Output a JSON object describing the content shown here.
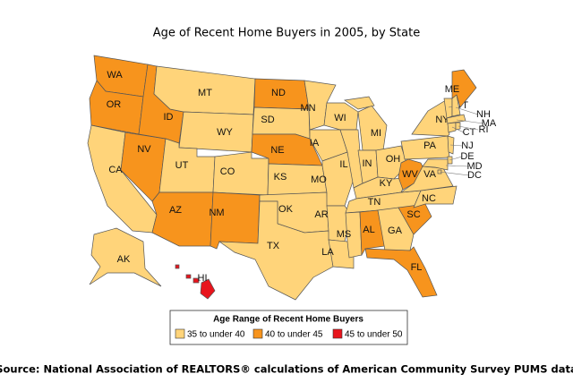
{
  "title": "Age of Recent Home Buyers in 2005, by State",
  "states": [
    {
      "abbr": "WA",
      "color": "#F7941D"
    },
    {
      "abbr": "OR",
      "color": "#F7941D"
    },
    {
      "abbr": "CA",
      "color": "#FFD47A"
    },
    {
      "abbr": "NV",
      "color": "#F7941D"
    },
    {
      "abbr": "ID",
      "color": "#F7941D"
    },
    {
      "abbr": "MT",
      "color": "#FFD47A"
    },
    {
      "abbr": "WY",
      "color": "#FFD47A"
    },
    {
      "abbr": "UT",
      "color": "#FFD47A"
    },
    {
      "abbr": "CO",
      "color": "#FFD47A"
    },
    {
      "abbr": "AZ",
      "color": "#F7941D"
    },
    {
      "abbr": "NM",
      "color": "#F7941D"
    },
    {
      "abbr": "ND",
      "color": "#F7941D"
    },
    {
      "abbr": "SD",
      "color": "#FFD47A"
    },
    {
      "abbr": "NE",
      "color": "#F7941D"
    },
    {
      "abbr": "KS",
      "color": "#FFD47A"
    },
    {
      "abbr": "OK",
      "color": "#FFD47A"
    },
    {
      "abbr": "TX",
      "color": "#FFD47A"
    },
    {
      "abbr": "MN",
      "color": "#FFD47A"
    },
    {
      "abbr": "IA",
      "color": "#FFD47A"
    },
    {
      "abbr": "MO",
      "color": "#FFD47A"
    },
    {
      "abbr": "AR",
      "color": "#FFD47A"
    },
    {
      "abbr": "LA",
      "color": "#FFD47A"
    },
    {
      "abbr": "WI",
      "color": "#FFD47A"
    },
    {
      "abbr": "IL",
      "color": "#FFD47A"
    },
    {
      "abbr": "MI",
      "color": "#FFD47A"
    },
    {
      "abbr": "IN",
      "color": "#FFD47A"
    },
    {
      "abbr": "OH",
      "color": "#FFD47A"
    },
    {
      "abbr": "KY",
      "color": "#FFD47A"
    },
    {
      "abbr": "TN",
      "color": "#FFD47A"
    },
    {
      "abbr": "MS",
      "color": "#FFD47A"
    },
    {
      "abbr": "AL",
      "color": "#F7941D"
    },
    {
      "abbr": "GA",
      "color": "#FFD47A"
    },
    {
      "abbr": "FL",
      "color": "#F7941D"
    },
    {
      "abbr": "SC",
      "color": "#F7941D"
    },
    {
      "abbr": "NC",
      "color": "#FFD47A"
    },
    {
      "abbr": "VA",
      "color": "#FFD47A"
    },
    {
      "abbr": "WV",
      "color": "#F7941D"
    },
    {
      "abbr": "PA",
      "color": "#FFD47A"
    },
    {
      "abbr": "NY",
      "color": "#FFD47A"
    },
    {
      "abbr": "VT",
      "color": "#FFD47A"
    },
    {
      "abbr": "NH",
      "color": "#FFD47A"
    },
    {
      "abbr": "ME",
      "color": "#F7941D"
    },
    {
      "abbr": "MA",
      "color": "#FFD47A"
    },
    {
      "abbr": "CT",
      "color": "#FFD47A"
    },
    {
      "abbr": "RI",
      "color": "#FFD47A"
    },
    {
      "abbr": "NJ",
      "color": "#FFD47A"
    },
    {
      "abbr": "DE",
      "color": "#FFD47A"
    },
    {
      "abbr": "MD",
      "color": "#FFD47A"
    },
    {
      "abbr": "DC",
      "color": "#FFD47A"
    },
    {
      "abbr": "AK",
      "color": "#FFD47A"
    },
    {
      "abbr": "HI",
      "color": "#E8141C"
    }
  ],
  "legend": {
    "title": "Age Range of Recent Home Buyers",
    "items": [
      {
        "label": "35 to under 40",
        "color": "#FFD47A"
      },
      {
        "label": "40 to under 45",
        "color": "#F7941D"
      },
      {
        "label": "45 to under 50",
        "color": "#E8141C"
      }
    ]
  },
  "source": "Source: National Association of REALTORS® calculations of American Community Survey PUMS data"
}
